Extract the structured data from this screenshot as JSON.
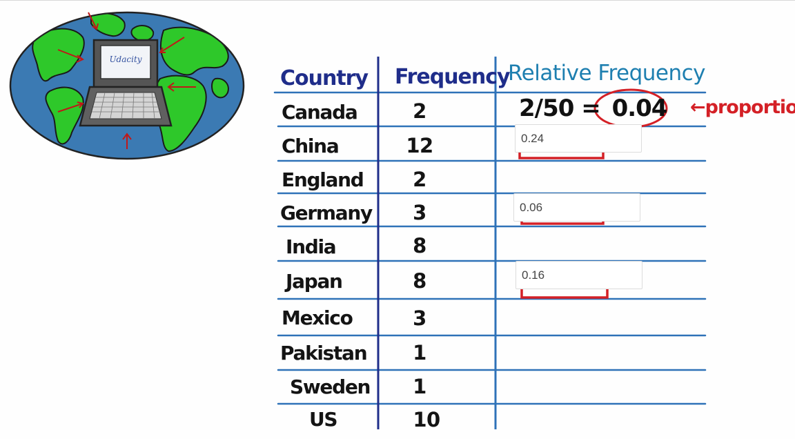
{
  "logo": {
    "text": "Udacity"
  },
  "table": {
    "headers": {
      "country": "Country",
      "frequency": "Frequency",
      "relative": "Relative Frequency"
    },
    "rows": [
      {
        "country": "Canada",
        "frequency": "2"
      },
      {
        "country": "China",
        "frequency": "12"
      },
      {
        "country": "England",
        "frequency": "2"
      },
      {
        "country": "Germany",
        "frequency": "3"
      },
      {
        "country": "India",
        "frequency": "8"
      },
      {
        "country": "Japan",
        "frequency": "8"
      },
      {
        "country": "Mexico",
        "frequency": "3"
      },
      {
        "country": "Pakistan",
        "frequency": "1"
      },
      {
        "country": "Sweden",
        "frequency": "1"
      },
      {
        "country": "US",
        "frequency": "10"
      }
    ]
  },
  "example": {
    "equation_left": "2/50 =",
    "equation_result": "0.04",
    "annotation": "←proportion"
  },
  "answers": {
    "china": "0.24",
    "germany": "0.06",
    "japan": "0.16"
  },
  "colors": {
    "ocean": "#3b7ab3",
    "land": "#2ec82a",
    "header_blue": "#1f2d8a",
    "relative_blue": "#1e7fb0",
    "accent_red": "#d42026",
    "line_blue": "#2e72b8"
  }
}
